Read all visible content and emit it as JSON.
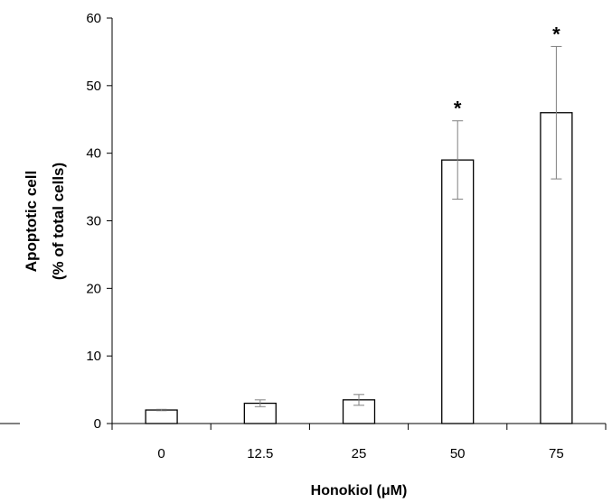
{
  "chart_data": {
    "type": "bar",
    "categories": [
      "0",
      "12.5",
      "25",
      "50",
      "75"
    ],
    "values": [
      2.0,
      3.0,
      3.5,
      39.0,
      46.0
    ],
    "errors": [
      0.1,
      0.5,
      0.8,
      5.8,
      9.8
    ],
    "significance": [
      "",
      "",
      "",
      "*",
      "*"
    ],
    "xlabel": "Honokiol (μM)",
    "ylabel": [
      "Apoptotic cell",
      "(% of total cells)"
    ],
    "ylim": [
      0,
      60
    ],
    "yticks": [
      0,
      10,
      20,
      30,
      40,
      50,
      60
    ],
    "grid": false,
    "bar_fill": "#ffffff",
    "bar_stroke": "#000000",
    "error_color": "#808080"
  }
}
